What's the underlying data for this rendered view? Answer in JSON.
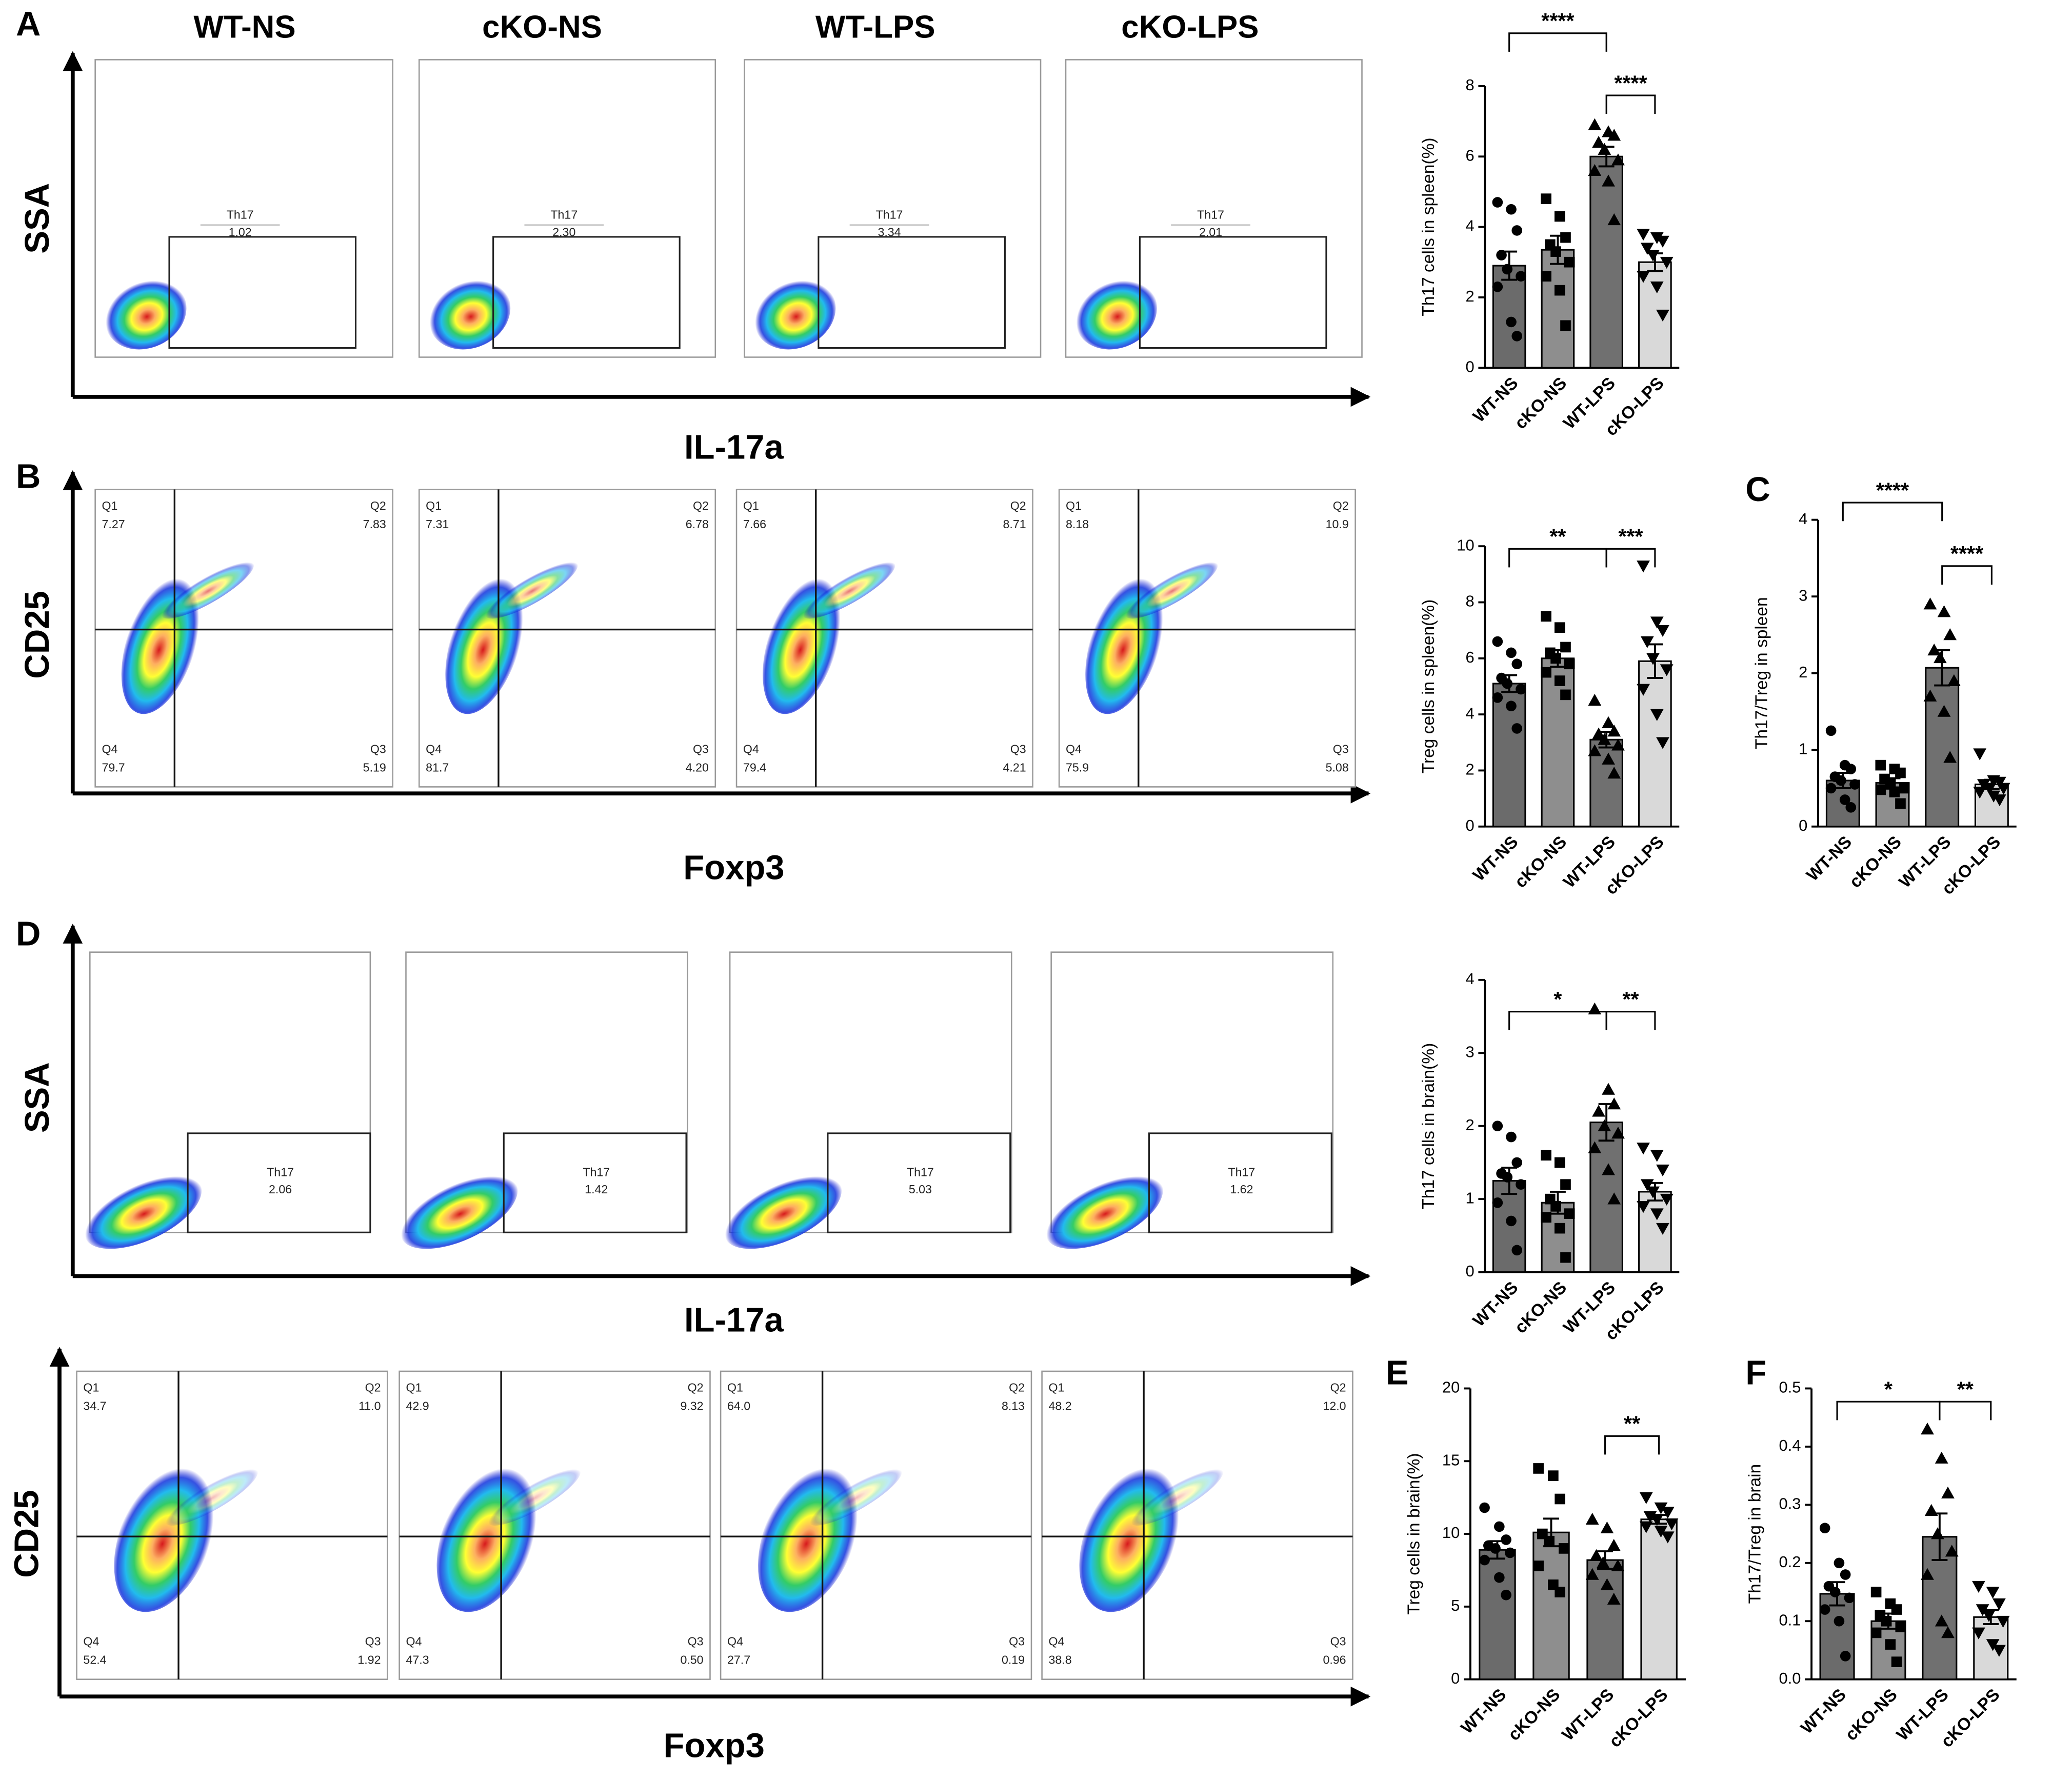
{
  "panel_labels": [
    "A",
    "B",
    "C",
    "D",
    "E",
    "F"
  ],
  "flow": {
    "headers": [
      "WT-NS",
      "cKO-NS",
      "WT-LPS",
      "cKO-LPS"
    ],
    "rows": [
      {
        "ylabel": "SSA",
        "xlabel": "IL-17a",
        "gate": "Th17",
        "values": [
          "1.02",
          "2.30",
          "3.34",
          "2.01"
        ]
      },
      {
        "ylabel": "CD25",
        "xlabel": "Foxp3",
        "quadrant_names": [
          "Q1",
          "Q2",
          "Q3",
          "Q4"
        ],
        "quadrants": [
          [
            "7.27",
            "7.83",
            "5.19",
            "79.7"
          ],
          [
            "7.31",
            "6.78",
            "4.20",
            "81.7"
          ],
          [
            "7.66",
            "8.71",
            "4.21",
            "79.4"
          ],
          [
            "8.18",
            "10.9",
            "5.08",
            "75.9"
          ]
        ]
      },
      {
        "ylabel": "SSA",
        "xlabel": "IL-17a",
        "gate": "Th17",
        "values": [
          "2.06",
          "1.42",
          "5.03",
          "1.62"
        ]
      },
      {
        "ylabel": "CD25",
        "xlabel": "Foxp3",
        "quadrant_names": [
          "Q1",
          "Q2",
          "Q3",
          "Q4"
        ],
        "quadrants": [
          [
            "34.7",
            "11.0",
            "1.92",
            "52.4"
          ],
          [
            "42.9",
            "9.32",
            "0.50",
            "47.3"
          ],
          [
            "64.0",
            "8.13",
            "0.19",
            "27.7"
          ],
          [
            "48.2",
            "12.0",
            "0.96",
            "38.8"
          ]
        ]
      }
    ]
  },
  "chart_data": [
    {
      "type": "bar",
      "ylabel": "Th17 cells in spleen(%)",
      "categories": [
        "WT-NS",
        "cKO-NS",
        "WT-LPS",
        "cKO-LPS"
      ],
      "colors": [
        "#6b6b6b",
        "#8e8e8e",
        "#707070",
        "#d9d9d9"
      ],
      "values": [
        2.9,
        3.35,
        6.0,
        3.0
      ],
      "errors": [
        0.4,
        0.4,
        0.28,
        0.25
      ],
      "points": [
        [
          4.7,
          4.5,
          3.9,
          3.2,
          2.8,
          2.6,
          2.3,
          1.3,
          0.9
        ],
        [
          4.8,
          4.3,
          3.7,
          3.5,
          3.3,
          3.0,
          2.6,
          2.2,
          1.2
        ],
        [
          6.9,
          6.7,
          6.6,
          6.4,
          6.2,
          5.9,
          5.6,
          5.3,
          4.2
        ],
        [
          3.8,
          3.7,
          3.6,
          3.4,
          3.2,
          3.0,
          2.6,
          2.3,
          1.5
        ]
      ],
      "ylim": [
        0,
        8
      ],
      "yticks": [
        0,
        2,
        4,
        6,
        8
      ],
      "comparisons": [
        {
          "groups": [
            0,
            2
          ],
          "label": "****"
        },
        {
          "groups": [
            2,
            3
          ],
          "label": "****"
        }
      ]
    },
    {
      "type": "bar",
      "ylabel": "Treg cells in spleen(%)",
      "categories": [
        "WT-NS",
        "cKO-NS",
        "WT-LPS",
        "cKO-LPS"
      ],
      "colors": [
        "#6b6b6b",
        "#8e8e8e",
        "#707070",
        "#d9d9d9"
      ],
      "values": [
        5.1,
        6.0,
        3.1,
        5.9
      ],
      "errors": [
        0.3,
        0.3,
        0.28,
        0.6
      ],
      "points": [
        [
          6.6,
          6.2,
          5.8,
          5.3,
          5.1,
          4.9,
          4.6,
          4.3,
          3.5
        ],
        [
          7.5,
          7.1,
          6.4,
          6.2,
          6.0,
          5.8,
          5.5,
          5.2,
          4.7
        ],
        [
          4.5,
          3.7,
          3.4,
          3.3,
          3.1,
          2.9,
          2.7,
          2.4,
          1.9
        ],
        [
          9.3,
          7.3,
          7.0,
          6.6,
          6.0,
          5.6,
          4.9,
          4.0,
          3.0
        ]
      ],
      "ylim": [
        0,
        10
      ],
      "yticks": [
        0,
        2,
        4,
        6,
        8,
        10
      ],
      "comparisons": [
        {
          "groups": [
            0,
            2
          ],
          "label": "**"
        },
        {
          "groups": [
            2,
            3
          ],
          "label": "***"
        }
      ]
    },
    {
      "type": "bar",
      "ylabel": "Th17/Treg in spleen",
      "categories": [
        "WT-NS",
        "cKO-NS",
        "WT-LPS",
        "cKO-LPS"
      ],
      "colors": [
        "#6b6b6b",
        "#8e8e8e",
        "#707070",
        "#d9d9d9"
      ],
      "values": [
        0.6,
        0.57,
        2.07,
        0.55
      ],
      "errors": [
        0.1,
        0.06,
        0.23,
        0.06
      ],
      "points": [
        [
          1.25,
          0.8,
          0.75,
          0.65,
          0.6,
          0.55,
          0.5,
          0.35,
          0.25
        ],
        [
          0.8,
          0.75,
          0.7,
          0.62,
          0.55,
          0.5,
          0.48,
          0.45,
          0.3
        ],
        [
          2.9,
          2.8,
          2.5,
          2.3,
          2.2,
          1.9,
          1.7,
          1.5,
          0.9
        ],
        [
          0.95,
          0.6,
          0.58,
          0.55,
          0.5,
          0.5,
          0.45,
          0.4,
          0.35
        ]
      ],
      "ylim": [
        0,
        4
      ],
      "yticks": [
        0,
        1,
        2,
        3,
        4
      ],
      "comparisons": [
        {
          "groups": [
            0,
            2
          ],
          "label": "****"
        },
        {
          "groups": [
            2,
            3
          ],
          "label": "****"
        }
      ]
    },
    {
      "type": "bar",
      "ylabel": "Th17 cells in brain(%)",
      "categories": [
        "WT-NS",
        "cKO-NS",
        "WT-LPS",
        "cKO-LPS"
      ],
      "colors": [
        "#6b6b6b",
        "#8e8e8e",
        "#707070",
        "#d9d9d9"
      ],
      "values": [
        1.25,
        0.95,
        2.05,
        1.1
      ],
      "errors": [
        0.18,
        0.15,
        0.25,
        0.12
      ],
      "points": [
        [
          2.0,
          1.85,
          1.5,
          1.35,
          1.3,
          1.2,
          0.95,
          0.7,
          0.3
        ],
        [
          1.6,
          1.5,
          1.2,
          1.0,
          0.9,
          0.8,
          0.75,
          0.6,
          0.2
        ],
        [
          3.6,
          2.5,
          2.3,
          2.2,
          2.0,
          1.9,
          1.7,
          1.4,
          1.0
        ],
        [
          1.7,
          1.6,
          1.4,
          1.2,
          1.1,
          1.0,
          0.9,
          0.8,
          0.6
        ]
      ],
      "ylim": [
        0,
        4
      ],
      "yticks": [
        0,
        1,
        2,
        3,
        4
      ],
      "comparisons": [
        {
          "groups": [
            0,
            2
          ],
          "label": "*"
        },
        {
          "groups": [
            2,
            3
          ],
          "label": "**"
        }
      ]
    },
    {
      "type": "bar",
      "ylabel": "Treg cells in brain(%)",
      "categories": [
        "WT-NS",
        "cKO-NS",
        "WT-LPS",
        "cKO-LPS"
      ],
      "colors": [
        "#6b6b6b",
        "#8e8e8e",
        "#707070",
        "#d9d9d9"
      ],
      "values": [
        8.9,
        10.1,
        8.2,
        11.0
      ],
      "errors": [
        0.6,
        0.95,
        0.6,
        0.3
      ],
      "points": [
        [
          11.8,
          10.5,
          9.6,
          9.2,
          9.0,
          8.7,
          8.2,
          7.0,
          5.8
        ],
        [
          14.5,
          14.0,
          12.4,
          10.0,
          9.5,
          9.0,
          7.8,
          6.5,
          6.0
        ],
        [
          11.0,
          10.4,
          9.2,
          8.5,
          8.0,
          7.8,
          7.2,
          6.5,
          5.5
        ],
        [
          12.5,
          11.8,
          11.5,
          11.2,
          11.0,
          10.7,
          10.5,
          10.2,
          9.8
        ]
      ],
      "ylim": [
        0,
        20
      ],
      "yticks": [
        0,
        5,
        10,
        15,
        20
      ],
      "comparisons": [
        {
          "groups": [
            2,
            3
          ],
          "label": "**"
        }
      ]
    },
    {
      "type": "bar",
      "ylabel": "Th17/Treg in brain",
      "categories": [
        "WT-NS",
        "cKO-NS",
        "WT-LPS",
        "cKO-LPS"
      ],
      "colors": [
        "#6b6b6b",
        "#8e8e8e",
        "#707070",
        "#d9d9d9"
      ],
      "values": [
        0.147,
        0.1,
        0.245,
        0.107
      ],
      "errors": [
        0.02,
        0.013,
        0.04,
        0.012
      ],
      "points": [
        [
          0.26,
          0.2,
          0.18,
          0.16,
          0.15,
          0.14,
          0.12,
          0.1,
          0.04
        ],
        [
          0.15,
          0.13,
          0.12,
          0.11,
          0.1,
          0.09,
          0.08,
          0.06,
          0.03
        ],
        [
          0.43,
          0.38,
          0.32,
          0.29,
          0.25,
          0.22,
          0.18,
          0.1,
          0.08
        ],
        [
          0.16,
          0.15,
          0.13,
          0.12,
          0.11,
          0.1,
          0.08,
          0.06,
          0.05
        ]
      ],
      "ylim": [
        0,
        0.5
      ],
      "yticks": [
        {
          "value": 0,
          "label": "0.0"
        },
        0.1,
        0.2,
        0.3,
        0.4,
        0.5
      ],
      "comparisons": [
        {
          "groups": [
            0,
            2
          ],
          "label": "*"
        },
        {
          "groups": [
            2,
            3
          ],
          "label": "**"
        }
      ]
    }
  ]
}
